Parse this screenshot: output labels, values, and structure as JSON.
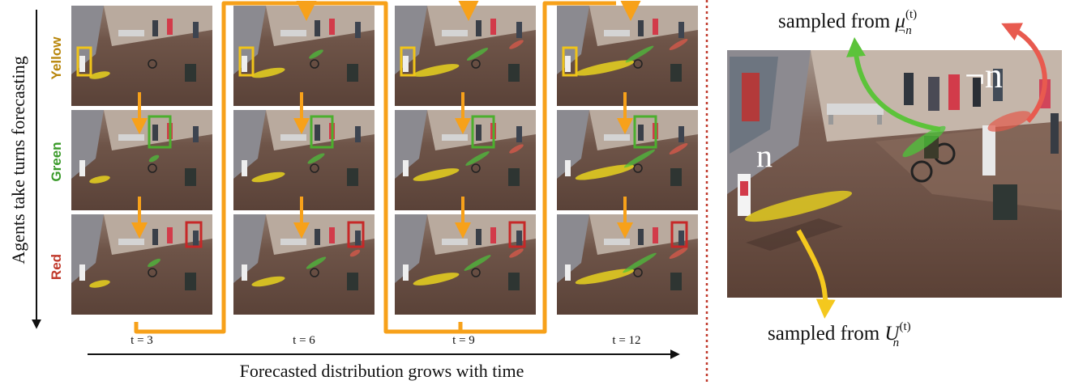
{
  "y_axis_label": "Agents take turns forecasting",
  "x_axis_label": "Forecasted distribution grows with time",
  "agents": [
    {
      "name": "Yellow",
      "color": "#b8860b"
    },
    {
      "name": "Green",
      "color": "#3a9a2a"
    },
    {
      "name": "Red",
      "color": "#c0392b"
    }
  ],
  "timesteps": [
    "t = 3",
    "t = 6",
    "t = 9",
    "t = 12"
  ],
  "right_panel": {
    "top_caption_prefix": "sampled from ",
    "top_caption_symbol": "μ",
    "top_caption_sup": "(t)",
    "top_caption_sub": "¬n",
    "bottom_caption_prefix": "sampled from ",
    "bottom_caption_symbol": "U",
    "bottom_caption_sup": "(t)",
    "bottom_caption_sub": "n",
    "label_n": "n",
    "label_not_n": "¬n"
  },
  "colors": {
    "orange_arrow": "#f7a11a",
    "yellow_box": "#f0c419",
    "green_box": "#4caf2e",
    "red_box": "#c62828",
    "divider": "#c0392b",
    "yellow_arrow": "#f4c81e",
    "green_arrow": "#5cc33a",
    "red_arrow": "#e85a4f"
  }
}
